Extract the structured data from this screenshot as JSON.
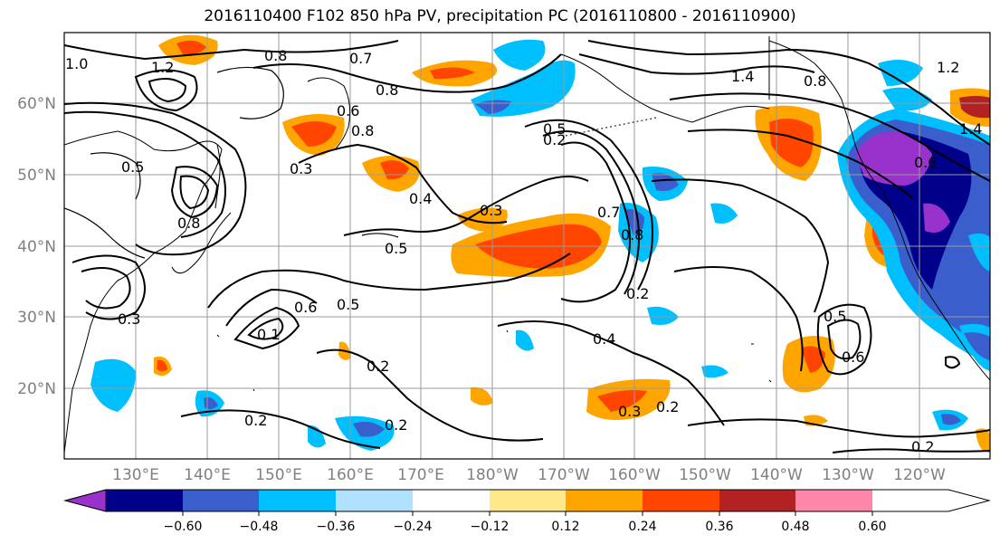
{
  "title": "2016110400 F102 850 hPa PV, precipitation PC (2016110800 - 2016110900)",
  "map": {
    "lat_labels": [
      "60°N",
      "50°N",
      "40°N",
      "30°N",
      "20°N"
    ],
    "lon_labels": [
      "130°E",
      "140°E",
      "150°E",
      "160°E",
      "170°E",
      "180°W",
      "170°W",
      "160°W",
      "150°W",
      "140°W",
      "130°W",
      "120°W"
    ],
    "contour_labels": [
      "1.0",
      "1.2",
      "0.8",
      "0.7",
      "0.8",
      "0.8",
      "0.6",
      "0.5",
      "0.3",
      "0.4",
      "0.3",
      "0.5",
      "0.5",
      "0.2",
      "0.3",
      "0.8",
      "0.6",
      "0.5",
      "0.7",
      "0.1",
      "0.2",
      "0.4",
      "0.2",
      "0.3",
      "0.2",
      "0.2",
      "0.5",
      "0.6",
      "1.4",
      "0.8",
      "1.2",
      "1.4",
      "0.2",
      "0.8",
      "0.6",
      "0.2"
    ]
  },
  "colorbar": {
    "ticks": [
      "−0.60",
      "−0.48",
      "−0.36",
      "−0.24",
      "−0.12",
      "0.12",
      "0.24",
      "0.36",
      "0.48",
      "0.60"
    ],
    "colors": [
      "#9932cc",
      "#00008b",
      "#3a5fcd",
      "#00bfff",
      "#b0e2ff",
      "#ffffff",
      "#ffe88a",
      "#ffa500",
      "#ff4500",
      "#b22222",
      "#ff88aa"
    ]
  }
}
